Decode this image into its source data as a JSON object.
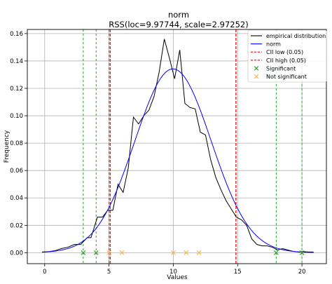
{
  "chart_data": {
    "type": "line",
    "title": "norm",
    "subtitle": "RSS(loc=9.97744, scale=2.97252)",
    "xlabel": "Values",
    "ylabel": "Frequency",
    "xlim": [
      -1.35,
      21.9
    ],
    "ylim": [
      -0.008,
      0.163
    ],
    "xticks": [
      0,
      5,
      10,
      15,
      20
    ],
    "xtick_labels": [
      "0",
      "5",
      "10",
      "15",
      "20"
    ],
    "yticks": [
      0.0,
      0.02,
      0.04,
      0.06,
      0.08,
      0.1,
      0.12,
      0.14,
      0.16
    ],
    "ytick_labels": [
      "0.00",
      "0.02",
      "0.04",
      "0.06",
      "0.08",
      "0.10",
      "0.12",
      "0.14",
      "0.16"
    ],
    "grid": true,
    "legend_position": "top-right",
    "legend": [
      {
        "label": "empirical distribution",
        "kind": "line",
        "color": "#000000"
      },
      {
        "label": "norm",
        "kind": "line",
        "color": "#0000ff"
      },
      {
        "label": "CII low (0.05)",
        "kind": "dashed",
        "color": "#ff0000"
      },
      {
        "label": "CII high (0.05)",
        "kind": "dashed",
        "color": "#ff0000"
      },
      {
        "label": "Significant",
        "kind": "x-marker",
        "color": "#2ca02c"
      },
      {
        "label": "Not significant",
        "kind": "x-marker",
        "color": "#ffb347"
      }
    ],
    "series": [
      {
        "name": "empirical distribution",
        "color": "#000000",
        "x": [
          -0.2,
          0.3,
          0.8,
          1.3,
          1.8,
          2.3,
          2.8,
          3.3,
          3.6,
          4.1,
          4.5,
          4.9,
          5.3,
          5.7,
          6.1,
          6.5,
          6.9,
          7.3,
          7.7,
          8.1,
          8.5,
          8.9,
          9.3,
          9.7,
          10.1,
          10.5,
          10.9,
          11.3,
          11.7,
          12.1,
          12.5,
          12.9,
          13.3,
          13.7,
          14.1,
          14.5,
          14.9,
          15.3,
          15.7,
          16.1,
          16.5,
          16.9,
          17.3,
          17.7,
          18.1,
          18.5,
          18.9,
          19.3,
          19.7,
          20.1,
          20.5,
          20.9
        ],
        "y": [
          0.0005,
          0.0008,
          0.0015,
          0.003,
          0.004,
          0.006,
          0.006,
          0.011,
          0.011,
          0.026,
          0.026,
          0.031,
          0.031,
          0.05,
          0.044,
          0.062,
          0.099,
          0.094,
          0.1,
          0.104,
          0.114,
          0.132,
          0.156,
          0.142,
          0.127,
          0.148,
          0.109,
          0.106,
          0.105,
          0.088,
          0.086,
          0.068,
          0.055,
          0.046,
          0.038,
          0.032,
          0.026,
          0.024,
          0.02,
          0.01,
          0.006,
          0.005,
          0.005,
          0.004,
          0.002,
          0.003,
          0.002,
          0.001,
          0.0005,
          0.0008,
          0.0005,
          0.0005
        ]
      },
      {
        "name": "norm",
        "color": "#0000ff",
        "kind": "normal-pdf",
        "loc": 9.97744,
        "scale": 2.97252,
        "x_range": [
          -0.2,
          20.9
        ]
      }
    ],
    "vertical_lines": [
      {
        "x": 5.09,
        "color": "#ff0000",
        "style": "dashed"
      },
      {
        "x": 14.87,
        "color": "#ff0000",
        "style": "dashed"
      },
      {
        "x": 3.0,
        "color": "#2ca02c",
        "style": "dashed"
      },
      {
        "x": 4.0,
        "color": "#2ca02c",
        "style": "dashed"
      },
      {
        "x": 5.0,
        "color": "#2ca02c",
        "style": "dashed"
      },
      {
        "x": 18.0,
        "color": "#2ca02c",
        "style": "dashed"
      },
      {
        "x": 20.0,
        "color": "#2ca02c",
        "style": "dashed"
      }
    ],
    "markers": [
      {
        "x": 3.0,
        "y": 0.0,
        "group": "Significant",
        "color": "#2ca02c"
      },
      {
        "x": 4.0,
        "y": 0.0,
        "group": "Significant",
        "color": "#2ca02c"
      },
      {
        "x": 18.0,
        "y": 0.0,
        "group": "Significant",
        "color": "#2ca02c"
      },
      {
        "x": 20.0,
        "y": 0.0,
        "group": "Significant",
        "color": "#2ca02c"
      },
      {
        "x": 5.0,
        "y": 0.0,
        "group": "Not significant",
        "color": "#ffb347"
      },
      {
        "x": 6.0,
        "y": 0.0,
        "group": "Not significant",
        "color": "#ffb347"
      },
      {
        "x": 10.0,
        "y": 0.0,
        "group": "Not significant",
        "color": "#ffb347"
      },
      {
        "x": 11.0,
        "y": 0.0,
        "group": "Not significant",
        "color": "#ffb347"
      },
      {
        "x": 12.0,
        "y": 0.0,
        "group": "Not significant",
        "color": "#ffb347"
      }
    ]
  }
}
